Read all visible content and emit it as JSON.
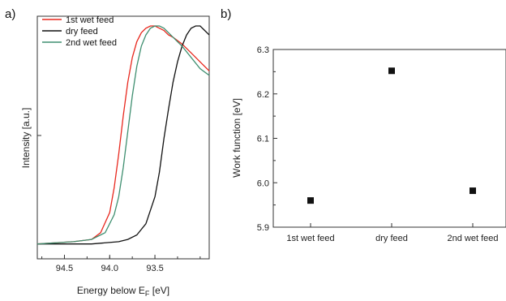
{
  "panels": {
    "a": {
      "label": "a)"
    },
    "b": {
      "label": "b)"
    }
  },
  "chart_data": [
    {
      "type": "line",
      "xlabel": "Energy below E",
      "xlabel_subscript": "F",
      "xlabel_unit": " [eV]",
      "ylabel": "Intensity [a.u.]",
      "x_reversed": true,
      "xlim": [
        94.8,
        92.9
      ],
      "ylim": [
        0,
        1
      ],
      "xticks": [
        94.5,
        94.0,
        93.5
      ],
      "xtick_labels": [
        "94.5",
        "94.0",
        "93.5"
      ],
      "legend_position": "top-left",
      "series": [
        {
          "name": "1st wet feed",
          "color": "#e8281e",
          "x": [
            94.8,
            94.4,
            94.2,
            94.1,
            94.0,
            93.95,
            93.9,
            93.85,
            93.8,
            93.75,
            93.7,
            93.65,
            93.6,
            93.55,
            93.5,
            93.45,
            93.4,
            93.35,
            93.3,
            93.2,
            93.1,
            93.0,
            92.9
          ],
          "y": [
            0.03,
            0.04,
            0.05,
            0.08,
            0.17,
            0.28,
            0.43,
            0.6,
            0.75,
            0.86,
            0.93,
            0.97,
            0.99,
            1.0,
            1.0,
            0.99,
            0.98,
            0.96,
            0.95,
            0.92,
            0.88,
            0.84,
            0.8
          ]
        },
        {
          "name": "dry feed",
          "color": "#111111",
          "x": [
            94.8,
            94.2,
            93.9,
            93.8,
            93.7,
            93.6,
            93.5,
            93.45,
            93.4,
            93.35,
            93.3,
            93.25,
            93.2,
            93.15,
            93.1,
            93.05,
            93.0,
            92.95,
            92.9
          ],
          "y": [
            0.03,
            0.03,
            0.04,
            0.05,
            0.07,
            0.12,
            0.24,
            0.35,
            0.5,
            0.63,
            0.75,
            0.84,
            0.91,
            0.96,
            0.99,
            1.0,
            1.0,
            0.98,
            0.96
          ]
        },
        {
          "name": "2nd wet feed",
          "color": "#3f8f70",
          "x": [
            94.8,
            94.4,
            94.2,
            94.05,
            93.95,
            93.9,
            93.85,
            93.8,
            93.75,
            93.7,
            93.65,
            93.6,
            93.55,
            93.5,
            93.45,
            93.4,
            93.35,
            93.3,
            93.2,
            93.1,
            93.0,
            92.9
          ],
          "y": [
            0.03,
            0.04,
            0.05,
            0.08,
            0.16,
            0.24,
            0.37,
            0.53,
            0.69,
            0.82,
            0.91,
            0.96,
            0.99,
            1.0,
            1.0,
            0.99,
            0.97,
            0.95,
            0.91,
            0.86,
            0.81,
            0.78
          ]
        }
      ]
    },
    {
      "type": "scatter",
      "xlabel": "",
      "ylabel": "Work function [eV]",
      "categories": [
        "1st wet feed",
        "dry feed",
        "2nd wet feed"
      ],
      "values": [
        5.96,
        6.252,
        5.982
      ],
      "ylim": [
        5.9,
        6.3
      ],
      "yticks": [
        5.9,
        6.0,
        6.1,
        6.2,
        6.3
      ],
      "ytick_labels": [
        "5.9",
        "6.0",
        "6.1",
        "6.2",
        "6.3"
      ],
      "marker": "square",
      "marker_color": "#111111"
    }
  ]
}
